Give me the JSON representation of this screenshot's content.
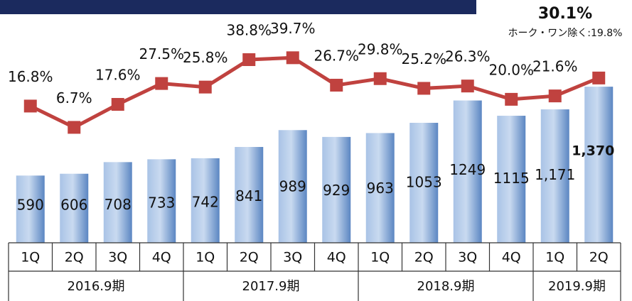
{
  "chart_data": {
    "type": "bar-line",
    "categories": [
      "1Q",
      "2Q",
      "3Q",
      "4Q",
      "1Q",
      "2Q",
      "3Q",
      "4Q",
      "1Q",
      "2Q",
      "3Q",
      "4Q",
      "1Q",
      "2Q"
    ],
    "groups": [
      {
        "label": "2016.9期",
        "count": 4
      },
      {
        "label": "2017.9期",
        "count": 4
      },
      {
        "label": "2018.9期",
        "count": 4
      },
      {
        "label": "2019.9期",
        "count": 2
      }
    ],
    "series": [
      {
        "type": "bar",
        "color": "#7ea3d6",
        "values": [
          590,
          606,
          708,
          733,
          742,
          841,
          989,
          929,
          963,
          1053,
          1249,
          1115,
          1171,
          1370
        ],
        "value_labels": [
          "590",
          "606",
          "708",
          "733",
          "742",
          "841",
          "989",
          "929",
          "963",
          "1053",
          "1249",
          "1115",
          "1,171",
          "1,370"
        ]
      },
      {
        "type": "line",
        "axis": "y2",
        "color": "#c0423f",
        "values": [
          16.8,
          6.7,
          17.6,
          27.5,
          25.8,
          38.8,
          39.7,
          26.7,
          29.8,
          25.2,
          26.3,
          20.0,
          21.6,
          30.1
        ],
        "value_labels": [
          "16.8%",
          "6.7%",
          "17.6%",
          "27.5%",
          "25.8%",
          "38.8%",
          "39.7%",
          "26.7%",
          "29.8%",
          "25.2%",
          "26.3%",
          "20.0%",
          "21.6%",
          "30.1%"
        ]
      }
    ],
    "annotation": "ホーク・ワン除く:19.8%",
    "ylim": [
      0,
      2000
    ],
    "y2lim": [
      -48,
      60
    ]
  }
}
